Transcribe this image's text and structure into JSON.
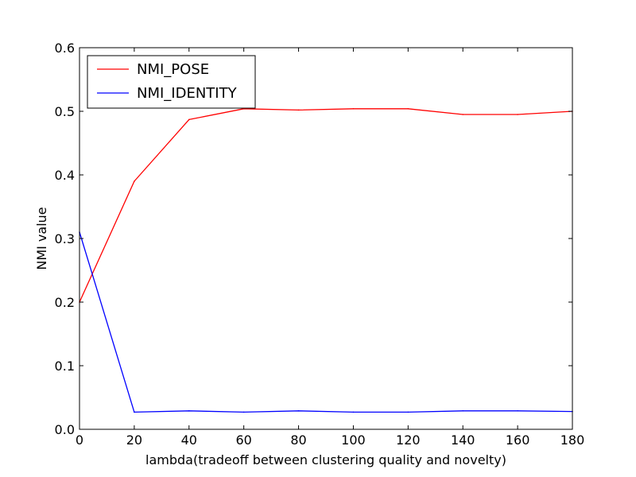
{
  "chart_data": {
    "type": "line",
    "title": "",
    "xlabel": "lambda(tradeoff between clustering quality and novelty)",
    "ylabel": "NMI value",
    "xlim": [
      0,
      180
    ],
    "ylim": [
      0.0,
      0.6
    ],
    "xticks": [
      0,
      20,
      40,
      60,
      80,
      100,
      120,
      140,
      160,
      180
    ],
    "xtick_labels": [
      "0",
      "20",
      "40",
      "60",
      "80",
      "100",
      "120",
      "140",
      "160",
      "180"
    ],
    "yticks": [
      0.0,
      0.1,
      0.2,
      0.3,
      0.4,
      0.5,
      0.6
    ],
    "ytick_labels": [
      "0.0",
      "0.1",
      "0.2",
      "0.3",
      "0.4",
      "0.5",
      "0.6"
    ],
    "grid": false,
    "legend_position": "top-left",
    "x": [
      0,
      20,
      40,
      60,
      80,
      100,
      120,
      140,
      160,
      180
    ],
    "series": [
      {
        "name": "NMI_POSE",
        "color": "#ff0000",
        "values": [
          0.2,
          0.39,
          0.487,
          0.504,
          0.502,
          0.504,
          0.504,
          0.495,
          0.495,
          0.5
        ]
      },
      {
        "name": "NMI_IDENTITY",
        "color": "#0000ff",
        "values": [
          0.31,
          0.027,
          0.029,
          0.027,
          0.029,
          0.027,
          0.027,
          0.029,
          0.029,
          0.028
        ]
      }
    ]
  }
}
